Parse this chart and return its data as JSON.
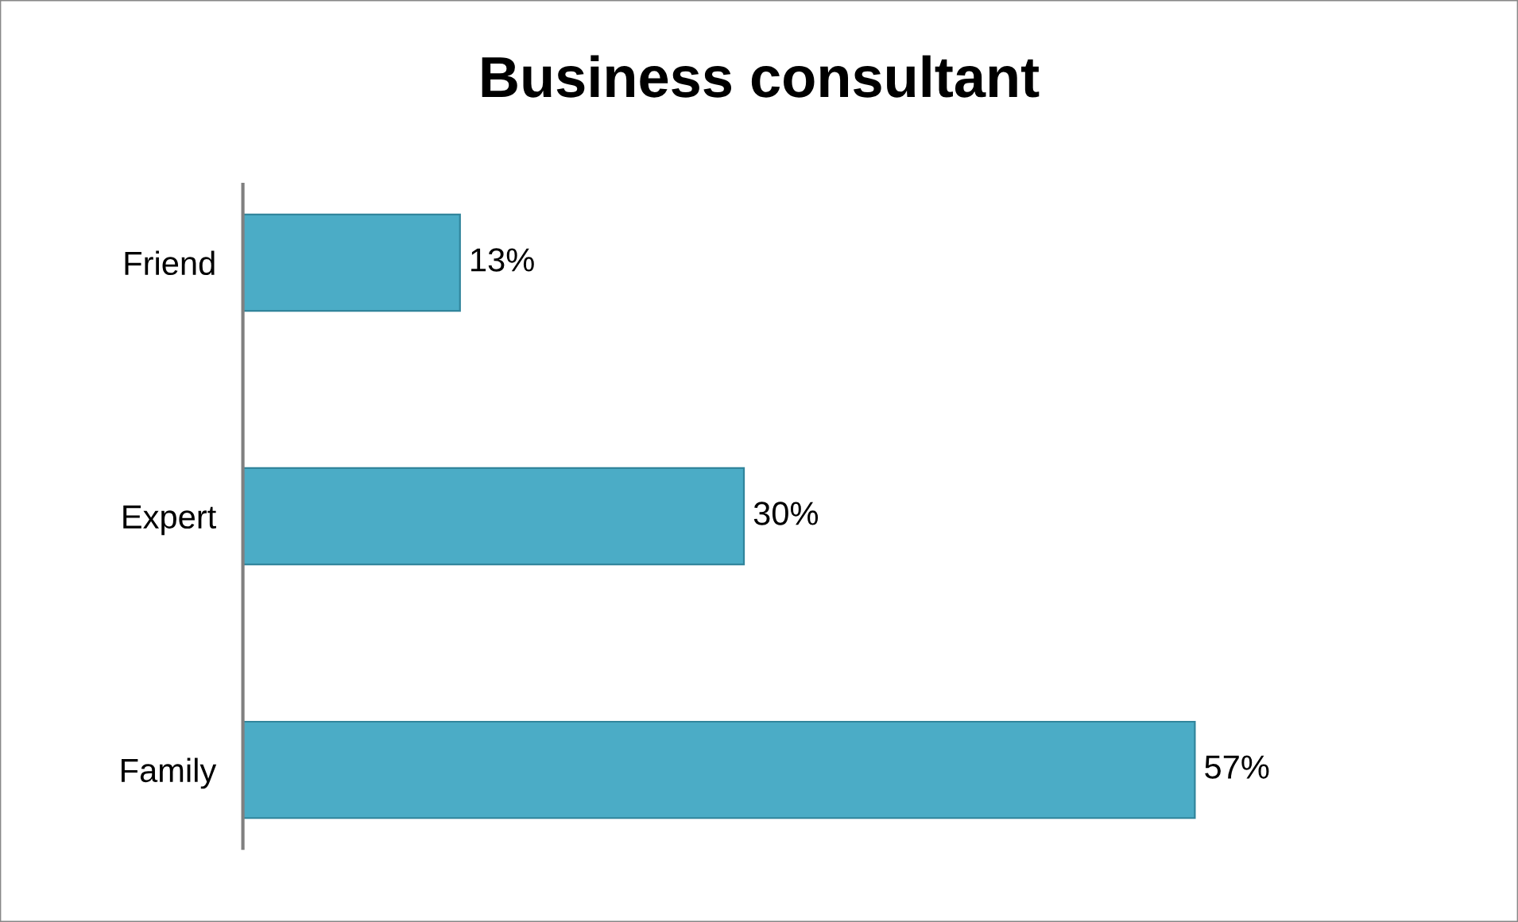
{
  "chart_data": {
    "type": "bar",
    "orientation": "horizontal",
    "title": "Business consultant",
    "categories": [
      "Friend",
      "Expert",
      "Family"
    ],
    "values": [
      13,
      30,
      57
    ],
    "value_labels": [
      "13%",
      "30%",
      "57%"
    ],
    "color": "#4bacc6",
    "grid": false,
    "legend": false
  }
}
